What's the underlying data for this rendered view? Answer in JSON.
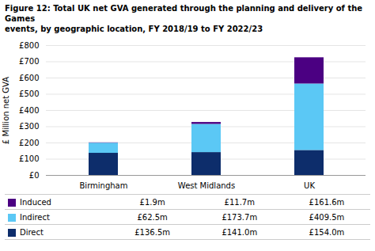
{
  "chart_data": {
    "type": "bar",
    "stacked": true,
    "title": "Figure 12: Total UK net GVA generated through the planning and delivery of the Games\nevents, by geographic location, FY 2018/19 to FY 2022/23",
    "categories": [
      "Birmingham",
      "West Midlands",
      "UK"
    ],
    "series": [
      {
        "name": "Direct",
        "color": "#0d2d6b",
        "values": [
          136.5,
          141.0,
          154.0
        ],
        "value_labels": [
          "£136.5m",
          "£141.0m",
          "£154.0m"
        ]
      },
      {
        "name": "Indirect",
        "color": "#5bc8f5",
        "values": [
          62.5,
          173.7,
          409.5
        ],
        "value_labels": [
          "£62.5m",
          "£173.7m",
          "£409.5m"
        ]
      },
      {
        "name": "Induced",
        "color": "#4b0082",
        "values": [
          1.9,
          11.7,
          161.6
        ],
        "value_labels": [
          "£1.9m",
          "£11.7m",
          "£161.6m"
        ]
      }
    ],
    "ylabel": "£ Million net GVA",
    "ylim": [
      0,
      800
    ],
    "yticks": [
      {
        "value": 0,
        "label": "£0"
      },
      {
        "value": 100,
        "label": "£100"
      },
      {
        "value": 200,
        "label": "£200"
      },
      {
        "value": 300,
        "label": "£300"
      },
      {
        "value": 400,
        "label": "£400"
      },
      {
        "value": 500,
        "label": "£500"
      },
      {
        "value": 600,
        "label": "£600"
      },
      {
        "value": 700,
        "label": "£700"
      },
      {
        "value": 800,
        "label": "£800"
      }
    ],
    "grid": true,
    "legend": "bottom"
  }
}
